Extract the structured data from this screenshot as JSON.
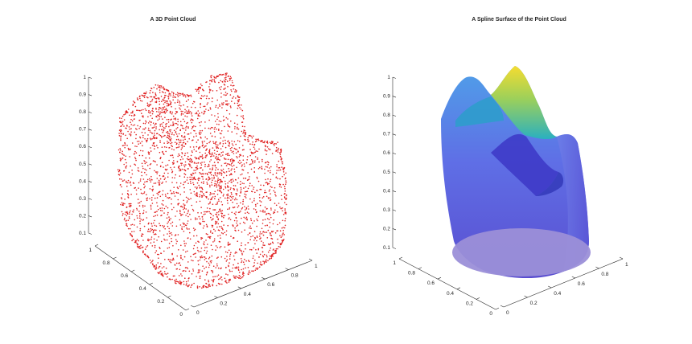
{
  "chart_data": [
    {
      "type": "scatter",
      "subtype": "scatter3d",
      "title": "A 3D Point Cloud",
      "marker_color": "#e02020",
      "xlim": [
        0,
        1
      ],
      "ylim": [
        0,
        1
      ],
      "zlim": [
        0.1,
        1
      ],
      "x_ticks": [
        "0",
        "0.2",
        "0.4",
        "0.6",
        "0.8",
        "1"
      ],
      "y_ticks": [
        "0",
        "0.2",
        "0.4",
        "0.6",
        "0.8",
        "1"
      ],
      "z_ticks": [
        "0.1",
        "0.2",
        "0.3",
        "0.4",
        "0.5",
        "0.6",
        "0.7",
        "0.8",
        "0.9",
        "1"
      ],
      "grid": false,
      "description_of_shape": "closed surface sampled as points"
    },
    {
      "type": "surface",
      "title": "A Spline Surface of the Point Cloud",
      "colormap": "parula",
      "colors": {
        "low": "#4b3fd4",
        "mid": "#2ab0c0",
        "high": "#f5dc30",
        "base": "#9b8fd8"
      },
      "xlim": [
        0,
        1
      ],
      "ylim": [
        0,
        1
      ],
      "zlim": [
        0.1,
        1
      ],
      "x_ticks": [
        "0",
        "0.2",
        "0.4",
        "0.6",
        "0.8",
        "1"
      ],
      "y_ticks": [
        "0",
        "0.2",
        "0.4",
        "0.6",
        "0.8",
        "1"
      ],
      "z_ticks": [
        "0.1",
        "0.2",
        "0.3",
        "0.4",
        "0.5",
        "0.6",
        "0.7",
        "0.8",
        "0.9",
        "1"
      ],
      "grid": false
    }
  ]
}
